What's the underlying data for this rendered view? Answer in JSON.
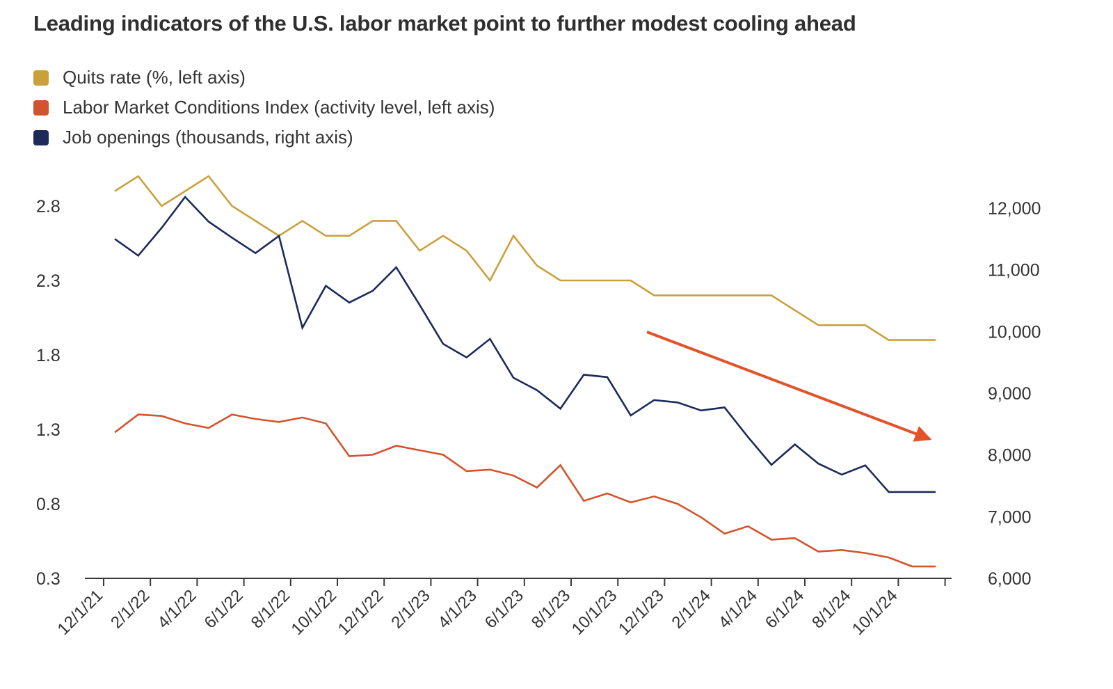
{
  "chart_data": {
    "type": "line",
    "title": "Leading indicators of the U.S. labor market point to further modest cooling ahead",
    "x": [
      "12/1/21",
      "1/1/22",
      "2/1/22",
      "3/1/22",
      "4/1/22",
      "5/1/22",
      "6/1/22",
      "7/1/22",
      "8/1/22",
      "9/1/22",
      "10/1/22",
      "11/1/22",
      "12/1/22",
      "1/1/23",
      "2/1/23",
      "3/1/23",
      "4/1/23",
      "5/1/23",
      "6/1/23",
      "7/1/23",
      "8/1/23",
      "9/1/23",
      "10/1/23",
      "11/1/23",
      "12/1/23",
      "1/1/24",
      "2/1/24",
      "3/1/24",
      "4/1/24",
      "5/1/24",
      "6/1/24",
      "7/1/24",
      "8/1/24",
      "9/1/24",
      "10/1/24",
      "11/1/24"
    ],
    "x_tick_labels": [
      "12/1/21",
      "2/1/22",
      "4/1/22",
      "6/1/22",
      "8/1/22",
      "10/1/22",
      "12/1/22",
      "2/1/23",
      "4/1/23",
      "6/1/23",
      "8/1/23",
      "10/1/23",
      "12/1/23",
      "2/1/24",
      "4/1/24",
      "6/1/24",
      "8/1/24",
      "10/1/24"
    ],
    "y_left": {
      "ticks": [
        "0.3",
        "0.8",
        "1.3",
        "1.8",
        "2.3",
        "2.8"
      ],
      "range": [
        0.3,
        3.05
      ]
    },
    "y_right": {
      "ticks": [
        "6,000",
        "7,000",
        "8,000",
        "9,000",
        "10,000",
        "11,000",
        "12,000"
      ],
      "range": [
        6000,
        12000
      ]
    },
    "grid": false,
    "legend_position": "top-left",
    "series": [
      {
        "name": "Quits rate (%, left axis)",
        "axis": "left",
        "color": "#c9a03b",
        "values": [
          2.9,
          3.0,
          2.8,
          2.9,
          3.0,
          2.8,
          2.7,
          2.6,
          2.7,
          2.6,
          2.6,
          2.7,
          2.7,
          2.5,
          2.6,
          2.5,
          2.3,
          2.6,
          2.4,
          2.3,
          2.3,
          2.3,
          2.3,
          2.2,
          2.2,
          2.2,
          2.2,
          2.2,
          2.2,
          2.1,
          2.0,
          2.0,
          2.0,
          1.9,
          1.9,
          1.9
        ]
      },
      {
        "name": "Labor Market Conditions Index (activity level, left axis)",
        "axis": "left",
        "color": "#d2542e",
        "values": [
          1.28,
          1.4,
          1.39,
          1.34,
          1.31,
          1.4,
          1.37,
          1.35,
          1.38,
          1.34,
          1.12,
          1.13,
          1.19,
          1.16,
          1.13,
          1.02,
          1.03,
          0.99,
          0.91,
          1.06,
          0.82,
          0.87,
          0.81,
          0.85,
          0.8,
          0.71,
          0.6,
          0.65,
          0.56,
          0.57,
          0.48,
          0.49,
          0.47,
          0.44,
          0.38,
          0.38
        ]
      },
      {
        "name": "Job openings (thousands, right axis)",
        "axis": "right",
        "color": "#1c2b5a",
        "values": [
          11500,
          11230,
          11680,
          12180,
          11780,
          11520,
          11270,
          11550,
          10060,
          10740,
          10470,
          10660,
          11040,
          10430,
          9800,
          9580,
          9880,
          9250,
          9050,
          8750,
          9300,
          9260,
          8640,
          8890,
          8850,
          8720,
          8770,
          8290,
          7840,
          8170,
          7860,
          7680,
          7830,
          7400,
          7400,
          7400
        ]
      }
    ],
    "annotation": {
      "type": "arrow",
      "direction": "down-right",
      "color": "#e2532a"
    }
  }
}
